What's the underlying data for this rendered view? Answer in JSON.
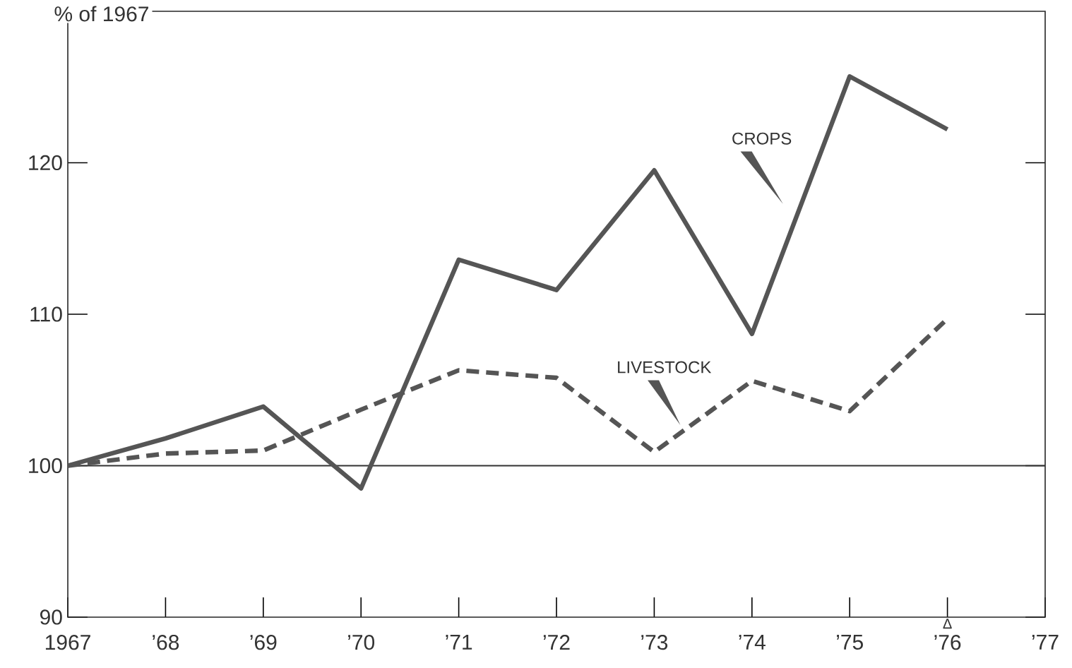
{
  "chart_data": {
    "type": "line",
    "ylabel": "% of 1967",
    "xlim": [
      1967,
      1977
    ],
    "ylim": [
      90,
      130
    ],
    "xticks": [
      {
        "value": 1967,
        "label": "1967"
      },
      {
        "value": 1968,
        "label": "’68"
      },
      {
        "value": 1969,
        "label": "’69"
      },
      {
        "value": 1970,
        "label": "’70"
      },
      {
        "value": 1971,
        "label": "’71"
      },
      {
        "value": 1972,
        "label": "’72"
      },
      {
        "value": 1973,
        "label": "’73"
      },
      {
        "value": 1974,
        "label": "’74"
      },
      {
        "value": 1975,
        "label": "’75"
      },
      {
        "value": 1976,
        "label": "’76"
      },
      {
        "value": 1977,
        "label": "’77"
      }
    ],
    "yticks": [
      90,
      100,
      110,
      120
    ],
    "x": [
      1967,
      1968,
      1969,
      1970,
      1971,
      1972,
      1973,
      1974,
      1975,
      1976
    ],
    "series": [
      {
        "name": "CROPS",
        "color": "#555555",
        "line_style": "solid",
        "values": [
          100,
          101.8,
          103.9,
          98.5,
          113.6,
          111.6,
          119.5,
          108.7,
          125.7,
          122.2
        ]
      },
      {
        "name": "LIVESTOCK",
        "color": "#555555",
        "line_style": "dashed",
        "values": [
          100,
          100.8,
          101.0,
          103.7,
          106.3,
          105.8,
          100.9,
          105.6,
          103.6,
          109.7
        ]
      }
    ],
    "ref_lines": [
      {
        "axis": "y",
        "value": 100,
        "color": "#333333"
      }
    ],
    "annotations": [
      "Δ"
    ],
    "marker": "none"
  }
}
